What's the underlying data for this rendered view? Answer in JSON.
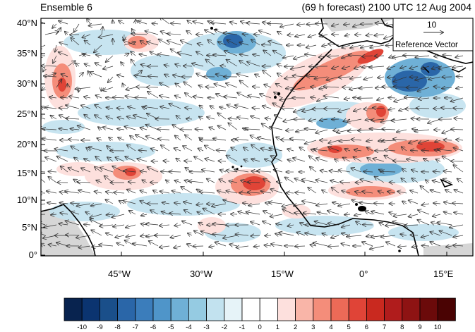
{
  "title_left": "Ensemble 6",
  "title_right": "(69 h forecast) 2100 UTC 12 Aug 2004",
  "lat_ticks": [
    "40°N",
    "35°N",
    "30°N",
    "25°N",
    "20°N",
    "15°N",
    "10°N",
    "5°N",
    "0°"
  ],
  "lon_ticks": [
    "45°W",
    "30°W",
    "15°W",
    "0°",
    "15°E"
  ],
  "reference_vector": {
    "value": "10",
    "label": "Reference Vector"
  },
  "colorbar": {
    "labels": [
      "-10",
      "-9",
      "-8",
      "-7",
      "-6",
      "-5",
      "-4",
      "-3",
      "-2",
      "-1",
      "0",
      "1",
      "2",
      "3",
      "4",
      "5",
      "6",
      "7",
      "8",
      "9",
      "10"
    ],
    "colors": [
      "#08234f",
      "#0b3470",
      "#1a4f8a",
      "#2a66a8",
      "#3b7dbb",
      "#4f95c9",
      "#6fb0d6",
      "#95cbe2",
      "#c2e2ef",
      "#e6f3f8",
      "#ffffff",
      "#ffffff",
      "#fde0dd",
      "#f9b5a8",
      "#f48d7a",
      "#ec6a57",
      "#e04437",
      "#c9291f",
      "#b01c1c",
      "#8e1313",
      "#6b0a0a",
      "#4a0303"
    ]
  }
}
